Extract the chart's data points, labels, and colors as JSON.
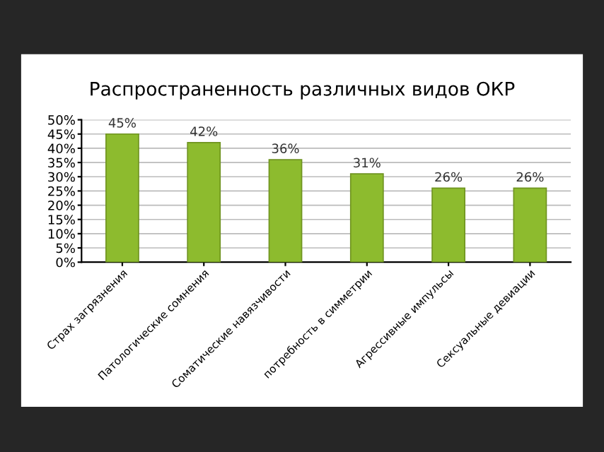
{
  "chart_data": {
    "type": "bar",
    "title": "Распространенность различных видов ОКР",
    "categories": [
      "Страх загрязнения",
      "Патологические сомнения",
      "Соматические навязчивости",
      "потребность в симметрии",
      "Агрессивные импульсы",
      "Сексуальные девиации"
    ],
    "values": [
      45,
      42,
      36,
      31,
      26,
      26
    ],
    "value_labels": [
      "45%",
      "42%",
      "36%",
      "31%",
      "26%",
      "26%"
    ],
    "color": "#8dbb2e",
    "ylim": [
      0,
      50
    ],
    "yticks": [
      {
        "value": 0,
        "label": "0%"
      },
      {
        "value": 5,
        "label": "5%"
      },
      {
        "value": 10,
        "label": "10%"
      },
      {
        "value": 15,
        "label": "15%"
      },
      {
        "value": 20,
        "label": "20%"
      },
      {
        "value": 25,
        "label": "25%"
      },
      {
        "value": 30,
        "label": "30%"
      },
      {
        "value": 35,
        "label": "35%"
      },
      {
        "value": 40,
        "label": "40%"
      },
      {
        "value": 45,
        "label": "45%"
      },
      {
        "value": 50,
        "label": "50%"
      }
    ],
    "grid": "y"
  }
}
